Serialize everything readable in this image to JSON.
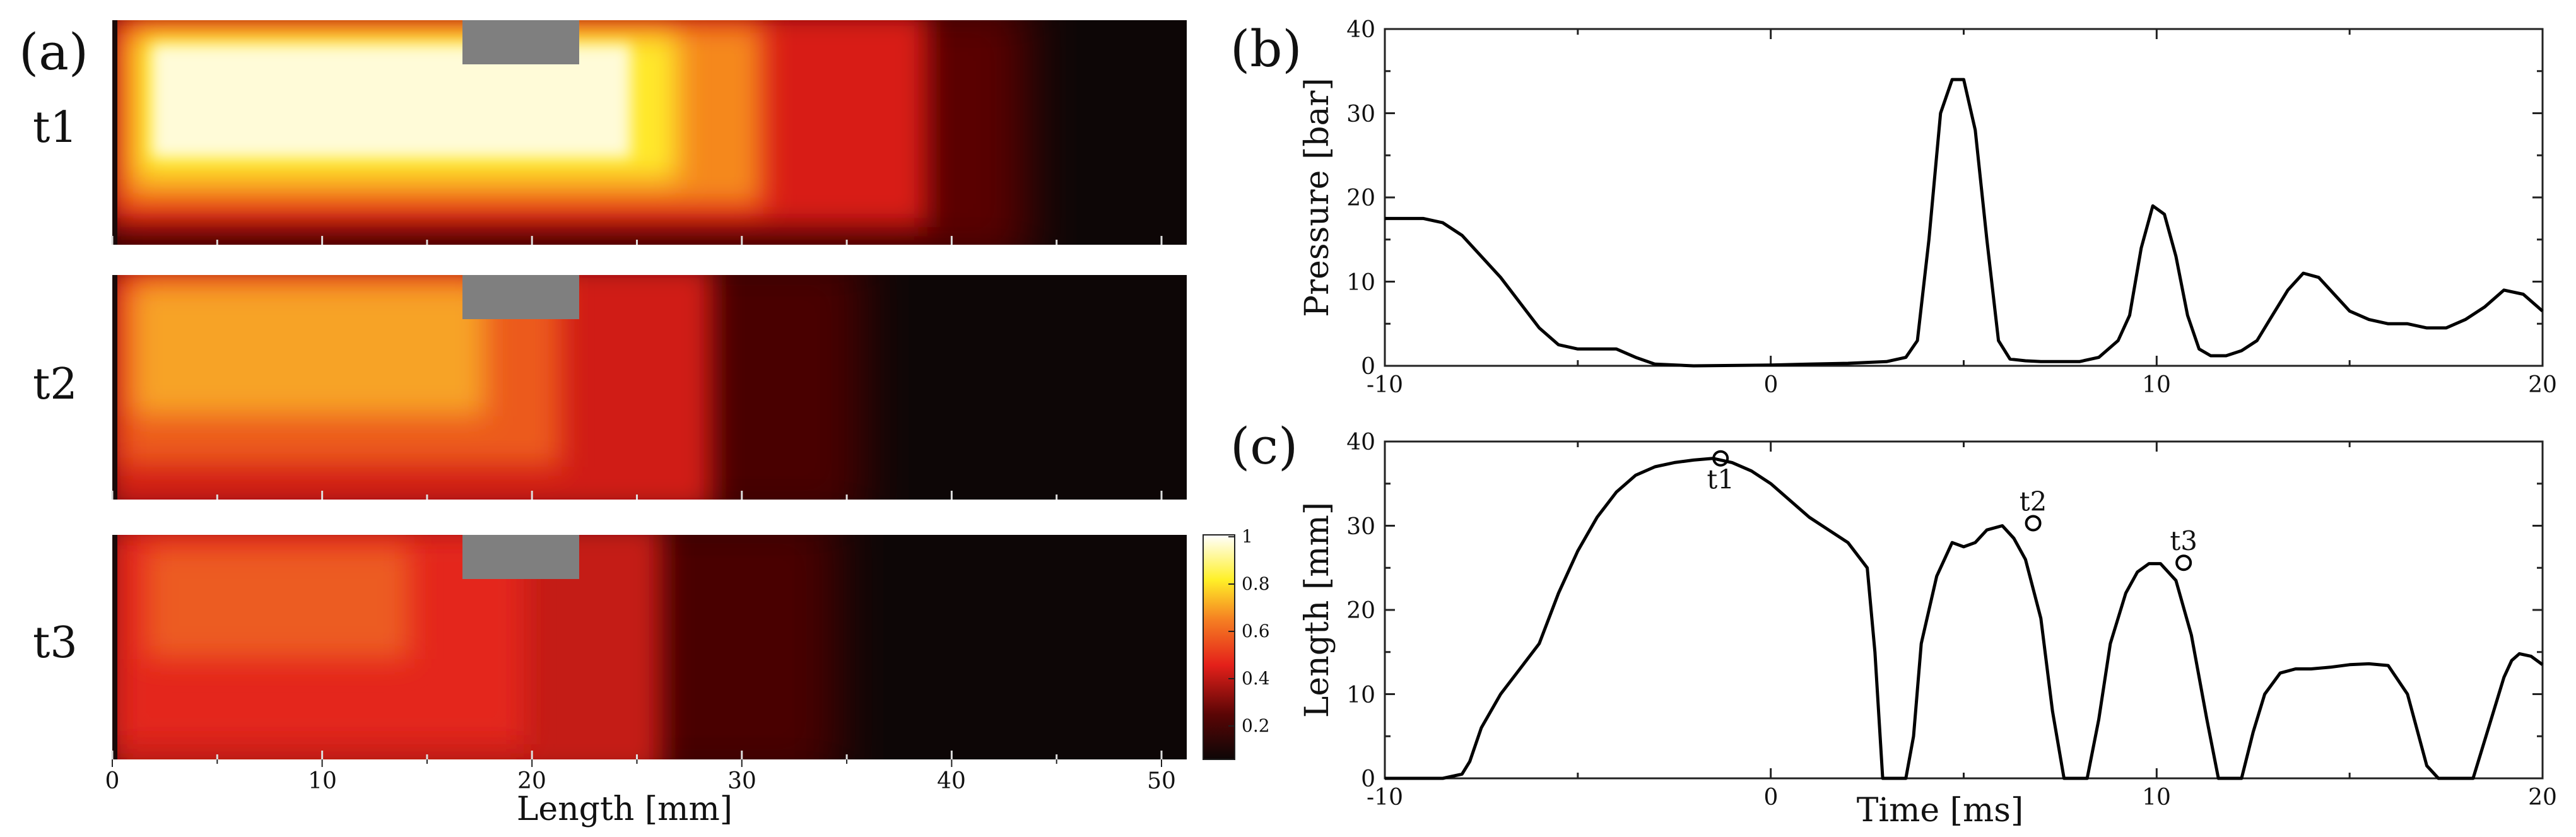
{
  "panel_a": {
    "label": "(a)",
    "rows": [
      "t1",
      "t2",
      "t3"
    ],
    "xticks": [
      "0",
      "10",
      "20",
      "30",
      "40",
      "50"
    ],
    "xlabel": "Length [mm]",
    "colorbar": {
      "ticks": [
        "1",
        "0.8",
        "0.6",
        "0.4",
        "0.2"
      ],
      "range": [
        0.05,
        1.0
      ]
    },
    "colors": {
      "black": "#0d0606",
      "dark_red": "#6a0505",
      "red": "#e4201a",
      "orange": "#f79a22",
      "yellow": "#fff028",
      "white": "#ffffff",
      "obstacle": "#7f7f7f"
    }
  },
  "chart_data": [
    {
      "type": "line",
      "label": "(b)",
      "title": "",
      "xlabel": "",
      "ylabel": "Pressure [bar]",
      "xlim": [
        -10,
        20
      ],
      "ylim": [
        0,
        40
      ],
      "xticks": [
        "-10",
        "0",
        "10",
        "20"
      ],
      "yticks": [
        "0",
        "10",
        "20",
        "30",
        "40"
      ],
      "series": [
        {
          "name": "Pressure",
          "x": [
            -10,
            -9,
            -8.5,
            -8,
            -7.5,
            -7,
            -6.5,
            -6,
            -5.5,
            -5,
            -4.5,
            -4,
            -3.5,
            -3,
            -2,
            0,
            1,
            2,
            3,
            3.5,
            3.8,
            4.1,
            4.4,
            4.7,
            5.0,
            5.3,
            5.6,
            5.9,
            6.2,
            6.6,
            7,
            8,
            8.5,
            9,
            9.3,
            9.6,
            9.9,
            10.2,
            10.5,
            10.8,
            11.1,
            11.4,
            11.8,
            12.2,
            12.6,
            13,
            13.4,
            13.8,
            14.2,
            14.6,
            15,
            15.5,
            16,
            16.5,
            17,
            17.5,
            18,
            18.5,
            19,
            19.5,
            20
          ],
          "values": [
            17.5,
            17.5,
            17,
            15.5,
            13,
            10.5,
            7.5,
            4.5,
            2.5,
            2,
            2,
            2,
            1,
            0.2,
            0,
            0.1,
            0.2,
            0.3,
            0.5,
            1,
            3,
            15,
            30,
            34,
            34,
            28,
            15,
            3,
            0.8,
            0.6,
            0.5,
            0.5,
            1,
            3,
            6,
            14,
            19,
            18,
            13,
            6,
            2,
            1.2,
            1.2,
            1.8,
            3,
            6,
            9,
            11,
            10.5,
            8.5,
            6.5,
            5.5,
            5,
            5,
            4.5,
            4.5,
            5.5,
            7,
            9,
            8.5,
            6.5
          ]
        }
      ]
    },
    {
      "type": "line",
      "label": "(c)",
      "title": "",
      "xlabel": "Time [ms]",
      "ylabel": "Length [mm]",
      "xlim": [
        -10,
        20
      ],
      "ylim": [
        0,
        40
      ],
      "xticks": [
        "-10",
        "0",
        "10",
        "20"
      ],
      "yticks": [
        "0",
        "10",
        "20",
        "30",
        "40"
      ],
      "series": [
        {
          "name": "Length",
          "x": [
            -10,
            -8.5,
            -8,
            -7.8,
            -7.5,
            -7,
            -6.5,
            -6,
            -5.5,
            -5,
            -4.5,
            -4,
            -3.5,
            -3,
            -2.5,
            -2,
            -1.5,
            -1,
            -0.5,
            0,
            0.5,
            1,
            1.5,
            2,
            2.5,
            2.7,
            2.9,
            3.2,
            3.5,
            3.7,
            3.9,
            4.3,
            4.7,
            5,
            5.3,
            5.6,
            6,
            6.3,
            6.6,
            7,
            7.3,
            7.6,
            7.9,
            8.2,
            8.5,
            8.8,
            9.2,
            9.5,
            9.8,
            10.1,
            10.5,
            10.9,
            11.3,
            11.6,
            11.9,
            12.2,
            12.5,
            12.8,
            13.2,
            13.6,
            14,
            14.5,
            15,
            15.5,
            16,
            16.5,
            17,
            17.3,
            17.6,
            17.9,
            18.2,
            18.6,
            19,
            19.2,
            19.4,
            19.7,
            20
          ],
          "values": [
            0,
            0,
            0.5,
            2,
            6,
            10,
            13,
            16,
            22,
            27,
            31,
            34,
            36,
            37,
            37.5,
            37.8,
            38,
            37.5,
            36.5,
            35,
            33,
            31,
            29.5,
            28,
            25,
            15,
            0,
            0,
            0,
            5,
            16,
            24,
            28,
            27.5,
            28,
            29.5,
            30,
            28.5,
            26,
            19,
            8,
            0,
            0,
            0,
            7,
            16,
            22,
            24.5,
            25.5,
            25.5,
            23.5,
            17,
            7,
            0,
            0,
            0,
            5.5,
            10,
            12.5,
            13,
            13,
            13.2,
            13.5,
            13.6,
            13.4,
            10,
            1.5,
            0,
            0,
            0,
            0,
            6,
            12,
            14,
            14.8,
            14.5,
            13.5
          ]
        }
      ],
      "markers": [
        {
          "label": "t1",
          "x": -1.3,
          "y": 38
        },
        {
          "label": "t2",
          "x": 6.8,
          "y": 30.3
        },
        {
          "label": "t3",
          "x": 10.7,
          "y": 25.6
        }
      ]
    }
  ]
}
